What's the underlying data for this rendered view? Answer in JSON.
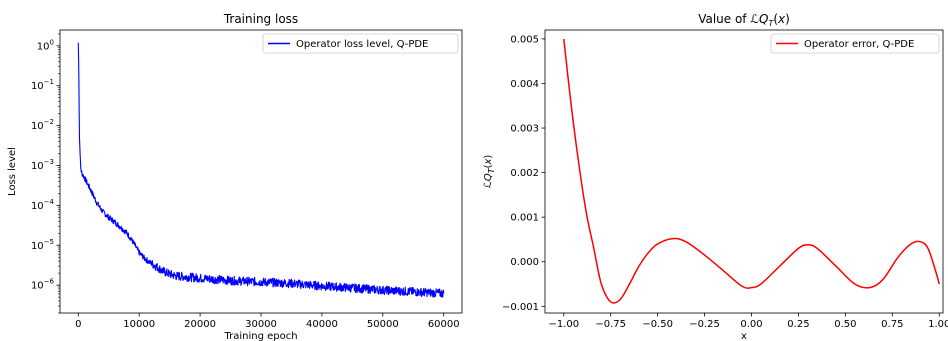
{
  "chart_data": [
    {
      "type": "line",
      "title": "Training loss",
      "xlabel": "Training epoch",
      "ylabel": "Loss level",
      "yscale": "log",
      "xlim": [
        -3000,
        63000
      ],
      "ylim": [
        2e-07,
        2.5
      ],
      "x_ticks": [
        0,
        10000,
        20000,
        30000,
        40000,
        50000,
        60000
      ],
      "x_tick_labels": [
        "0",
        "10000",
        "20000",
        "30000",
        "40000",
        "50000",
        "60000"
      ],
      "y_ticks": [
        1,
        0.1,
        0.01,
        0.001,
        0.0001,
        1e-05,
        1e-06
      ],
      "y_tick_labels": [
        "10^0",
        "10^-1",
        "10^-2",
        "10^-3",
        "10^-4",
        "10^-5",
        "10^-6"
      ],
      "legend": "top-right",
      "grid": false,
      "series": [
        {
          "name": "Operator loss level, Q-PDE",
          "color": "#0000ff",
          "x": [
            0,
            50,
            100,
            150,
            200,
            300,
            400,
            500,
            700,
            1000,
            2000,
            3000,
            4000,
            5000,
            6000,
            7000,
            8000,
            9000,
            10000,
            11000,
            12000,
            13000,
            14000,
            15000,
            16000,
            18000,
            20000,
            25000,
            30000,
            35000,
            40000,
            45000,
            50000,
            55000,
            60000
          ],
          "y": [
            1.2,
            0.5,
            0.15,
            0.02,
            0.005,
            0.002,
            0.0009,
            0.0007,
            0.0006,
            0.0005,
            0.00025,
            0.00012,
            7e-05,
            5e-05,
            3.8e-05,
            2.8e-05,
            2e-05,
            1.2e-05,
            6.5e-06,
            4.5e-06,
            3.5e-06,
            2.8e-06,
            2.2e-06,
            1.9e-06,
            1.7e-06,
            1.6e-06,
            1.5e-06,
            1.3e-06,
            1.2e-06,
            1.1e-06,
            9.5e-07,
            8.5e-07,
            7.5e-07,
            6.8e-07,
            6.2e-07
          ]
        }
      ]
    },
    {
      "type": "line",
      "title": "Value of ℒQ_T(x)",
      "xlabel": "x",
      "ylabel": "ℒQ_T(x)",
      "xlim": [
        -1.1,
        1.02
      ],
      "ylim": [
        -0.00115,
        0.0052
      ],
      "x_ticks": [
        -1.0,
        -0.75,
        -0.5,
        -0.25,
        0.0,
        0.25,
        0.5,
        0.75,
        1.0
      ],
      "x_tick_labels": [
        "−1.00",
        "−0.75",
        "−0.50",
        "−0.25",
        "0.00",
        "0.25",
        "0.50",
        "0.75",
        "1.00"
      ],
      "y_ticks": [
        -0.001,
        0.0,
        0.001,
        0.002,
        0.003,
        0.004,
        0.005
      ],
      "y_tick_labels": [
        "−0.001",
        "0.000",
        "0.001",
        "0.002",
        "0.003",
        "0.004",
        "0.005"
      ],
      "legend": "top-right",
      "grid": false,
      "series": [
        {
          "name": "Operator error, Q-PDE",
          "color": "#ff0000",
          "x": [
            -1.0,
            -0.96,
            -0.92,
            -0.88,
            -0.84,
            -0.8,
            -0.75,
            -0.7,
            -0.65,
            -0.6,
            -0.55,
            -0.5,
            -0.42,
            -0.35,
            -0.25,
            -0.15,
            -0.05,
            0.0,
            0.05,
            0.15,
            0.25,
            0.3,
            0.35,
            0.45,
            0.55,
            0.63,
            0.7,
            0.78,
            0.85,
            0.9,
            0.94,
            0.98,
            1.0
          ],
          "y": [
            0.005,
            0.0035,
            0.0022,
            0.0011,
            0.0003,
            -0.0005,
            -0.0009,
            -0.00085,
            -0.0005,
            -0.0001,
            0.0002,
            0.0004,
            0.00052,
            0.00045,
            0.00015,
            -0.0002,
            -0.00055,
            -0.00058,
            -0.0005,
            -0.0001,
            0.0003,
            0.00038,
            0.0003,
            -0.0001,
            -0.0005,
            -0.00058,
            -0.0004,
            0.0001,
            0.0004,
            0.00045,
            0.0003,
            -0.0002,
            -0.0005
          ]
        }
      ]
    }
  ]
}
